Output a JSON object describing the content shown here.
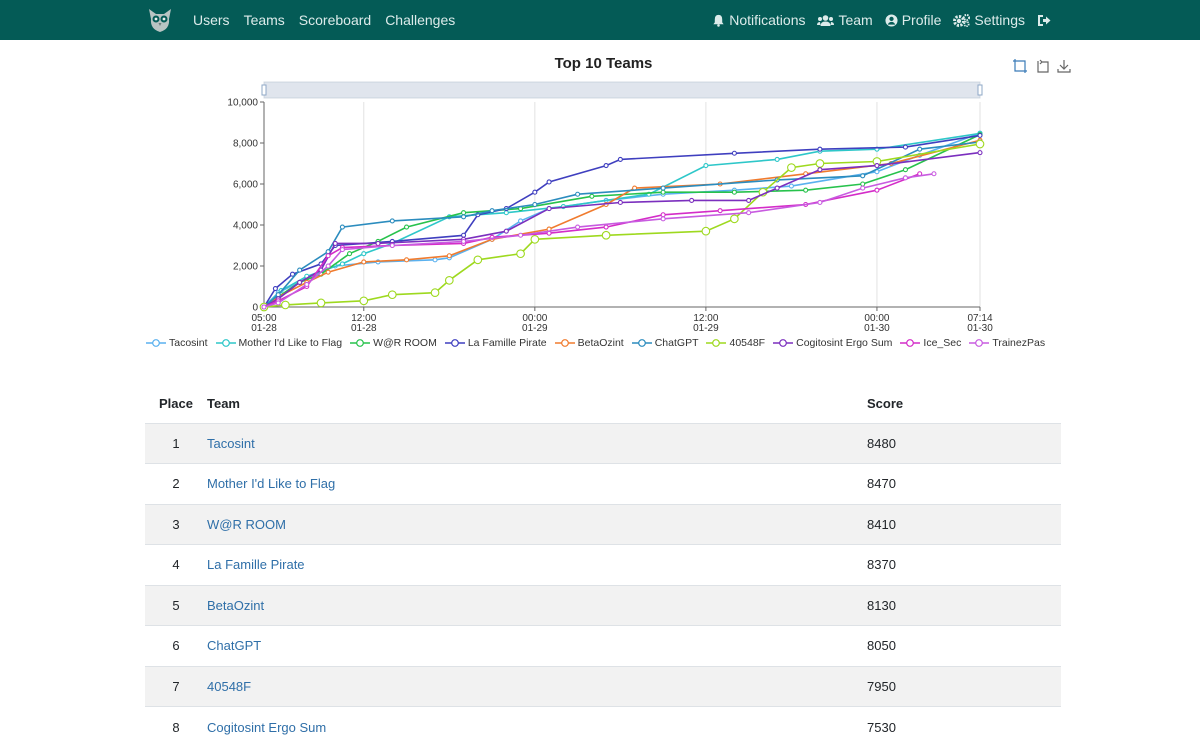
{
  "nav": {
    "left": [
      "Users",
      "Teams",
      "Scoreboard",
      "Challenges"
    ],
    "right": [
      {
        "label": "Notifications",
        "icon": "bell-icon"
      },
      {
        "label": "Team",
        "icon": "users-icon"
      },
      {
        "label": "Profile",
        "icon": "user-circle-icon"
      },
      {
        "label": "Settings",
        "icon": "gears-icon"
      },
      {
        "label": "",
        "icon": "logout-icon"
      }
    ]
  },
  "chart_data": {
    "type": "line",
    "title": "Top 10 Teams",
    "xlabel": "",
    "ylabel": "",
    "ylim": [
      0,
      10000
    ],
    "yticks": [
      "0",
      "2,000",
      "4,000",
      "6,000",
      "8,000",
      "10,000"
    ],
    "xticks": [
      "05:00\n01-28",
      "12:00\n01-28",
      "00:00\n01-29",
      "12:00\n01-29",
      "00:00\n01-30",
      "07:14\n01-30"
    ],
    "x_hours": [
      0,
      7,
      19,
      31,
      43,
      50.23
    ],
    "grid": "vertical",
    "legend": "bottom",
    "series": [
      {
        "name": "Tacosint",
        "color": "#5ab1ef",
        "points": [
          [
            0,
            0
          ],
          [
            1,
            700
          ],
          [
            3,
            1400
          ],
          [
            5,
            2000
          ],
          [
            8,
            2200
          ],
          [
            12,
            2300
          ],
          [
            13,
            2400
          ],
          [
            16,
            3300
          ],
          [
            18,
            4200
          ],
          [
            20,
            4800
          ],
          [
            24,
            5200
          ],
          [
            28,
            5500
          ],
          [
            33,
            5700
          ],
          [
            37,
            5900
          ],
          [
            43,
            6600
          ],
          [
            46,
            7400
          ],
          [
            50.23,
            8480
          ]
        ]
      },
      {
        "name": "Mother I'd Like to Flag",
        "color": "#2ec7c9",
        "points": [
          [
            0,
            0
          ],
          [
            1.2,
            800
          ],
          [
            3,
            1500
          ],
          [
            5.5,
            2100
          ],
          [
            7,
            2600
          ],
          [
            9,
            3100
          ],
          [
            13,
            4400
          ],
          [
            17,
            4600
          ],
          [
            21,
            4900
          ],
          [
            27,
            5500
          ],
          [
            31,
            6900
          ],
          [
            36,
            7200
          ],
          [
            39,
            7600
          ],
          [
            43,
            7700
          ],
          [
            50.23,
            8470
          ]
        ]
      },
      {
        "name": "W@R ROOM",
        "color": "#27c24c",
        "points": [
          [
            0,
            0
          ],
          [
            1,
            500
          ],
          [
            2.5,
            1200
          ],
          [
            4,
            1600
          ],
          [
            6,
            2600
          ],
          [
            8,
            3200
          ],
          [
            10,
            3900
          ],
          [
            14,
            4600
          ],
          [
            18,
            4800
          ],
          [
            23,
            5400
          ],
          [
            28,
            5600
          ],
          [
            33,
            5600
          ],
          [
            38,
            5700
          ],
          [
            42,
            6000
          ],
          [
            45,
            6700
          ],
          [
            50.23,
            8410
          ]
        ]
      },
      {
        "name": "La Famille Pirate",
        "color": "#3f3fbf",
        "points": [
          [
            0,
            0
          ],
          [
            0.8,
            900
          ],
          [
            2,
            1600
          ],
          [
            4,
            2100
          ],
          [
            5,
            3000
          ],
          [
            9,
            3200
          ],
          [
            14,
            3500
          ],
          [
            15,
            4500
          ],
          [
            17,
            4800
          ],
          [
            19,
            5600
          ],
          [
            20,
            6100
          ],
          [
            24,
            6900
          ],
          [
            25,
            7200
          ],
          [
            33,
            7500
          ],
          [
            39,
            7700
          ],
          [
            45,
            7800
          ],
          [
            50.23,
            8370
          ]
        ]
      },
      {
        "name": "BetaOzint",
        "color": "#f07b2e",
        "points": [
          [
            0,
            0
          ],
          [
            1,
            500
          ],
          [
            3,
            1200
          ],
          [
            4.5,
            1700
          ],
          [
            7,
            2200
          ],
          [
            10,
            2300
          ],
          [
            13,
            2500
          ],
          [
            16,
            3300
          ],
          [
            20,
            3800
          ],
          [
            24,
            5000
          ],
          [
            26,
            5800
          ],
          [
            32,
            6000
          ],
          [
            38,
            6500
          ],
          [
            44,
            7000
          ],
          [
            50.23,
            8130
          ]
        ]
      },
      {
        "name": "ChatGPT",
        "color": "#2b8cbe",
        "points": [
          [
            0,
            0
          ],
          [
            1,
            600
          ],
          [
            2.5,
            1800
          ],
          [
            4.5,
            2700
          ],
          [
            5.5,
            3900
          ],
          [
            9,
            4200
          ],
          [
            14,
            4400
          ],
          [
            16,
            4700
          ],
          [
            19,
            5000
          ],
          [
            22,
            5500
          ],
          [
            28,
            5800
          ],
          [
            36,
            6200
          ],
          [
            42,
            6400
          ],
          [
            46,
            7700
          ],
          [
            50.23,
            8050
          ]
        ]
      },
      {
        "name": "40548F",
        "color": "#9ed91f",
        "points": [
          [
            0,
            0
          ],
          [
            1.5,
            100
          ],
          [
            4,
            200
          ],
          [
            7,
            300
          ],
          [
            9,
            600
          ],
          [
            12,
            700
          ],
          [
            13,
            1300
          ],
          [
            15,
            2300
          ],
          [
            18,
            2600
          ],
          [
            19,
            3300
          ],
          [
            24,
            3500
          ],
          [
            31,
            3700
          ],
          [
            33,
            4300
          ],
          [
            35,
            5600
          ],
          [
            37,
            6800
          ],
          [
            39,
            7000
          ],
          [
            43,
            7100
          ],
          [
            50.23,
            7950
          ]
        ]
      },
      {
        "name": "Cogitosint Ergo Sum",
        "color": "#7b2fbe",
        "points": [
          [
            0,
            0
          ],
          [
            1,
            400
          ],
          [
            2.5,
            1200
          ],
          [
            4,
            1800
          ],
          [
            5,
            3100
          ],
          [
            8,
            3100
          ],
          [
            14,
            3300
          ],
          [
            17,
            3700
          ],
          [
            20,
            4800
          ],
          [
            25,
            5100
          ],
          [
            30,
            5200
          ],
          [
            34,
            5200
          ],
          [
            36,
            5800
          ],
          [
            39,
            6700
          ],
          [
            43,
            6900
          ],
          [
            50.23,
            7530
          ]
        ]
      },
      {
        "name": "Ice_Sec",
        "color": "#d42cc8",
        "points": [
          [
            0,
            0
          ],
          [
            1,
            300
          ],
          [
            3,
            1000
          ],
          [
            4.5,
            2500
          ],
          [
            5.5,
            2900
          ],
          [
            9,
            3000
          ],
          [
            14,
            3100
          ],
          [
            16,
            3400
          ],
          [
            20,
            3600
          ],
          [
            24,
            3900
          ],
          [
            28,
            4500
          ],
          [
            32,
            4700
          ],
          [
            38,
            5000
          ],
          [
            43,
            5700
          ],
          [
            46,
            6500
          ]
        ]
      },
      {
        "name": "TrainezPas",
        "color": "#c85be0",
        "points": [
          [
            0,
            0
          ],
          [
            1,
            200
          ],
          [
            3,
            1100
          ],
          [
            4.5,
            2000
          ],
          [
            5.5,
            2800
          ],
          [
            9,
            3000
          ],
          [
            14,
            3200
          ],
          [
            18,
            3500
          ],
          [
            22,
            3900
          ],
          [
            28,
            4300
          ],
          [
            34,
            4600
          ],
          [
            39,
            5100
          ],
          [
            42,
            5800
          ],
          [
            45,
            6300
          ],
          [
            47,
            6500
          ]
        ]
      }
    ]
  },
  "table": {
    "headers": [
      "Place",
      "Team",
      "Score"
    ],
    "rows": [
      {
        "place": "1",
        "team": "Tacosint",
        "score": "8480"
      },
      {
        "place": "2",
        "team": "Mother I'd Like to Flag",
        "score": "8470"
      },
      {
        "place": "3",
        "team": "W@R ROOM",
        "score": "8410"
      },
      {
        "place": "4",
        "team": "La Famille Pirate",
        "score": "8370"
      },
      {
        "place": "5",
        "team": "BetaOzint",
        "score": "8130"
      },
      {
        "place": "6",
        "team": "ChatGPT",
        "score": "8050"
      },
      {
        "place": "7",
        "team": "40548F",
        "score": "7950"
      },
      {
        "place": "8",
        "team": "Cogitosint Ergo Sum",
        "score": "7530"
      }
    ]
  }
}
